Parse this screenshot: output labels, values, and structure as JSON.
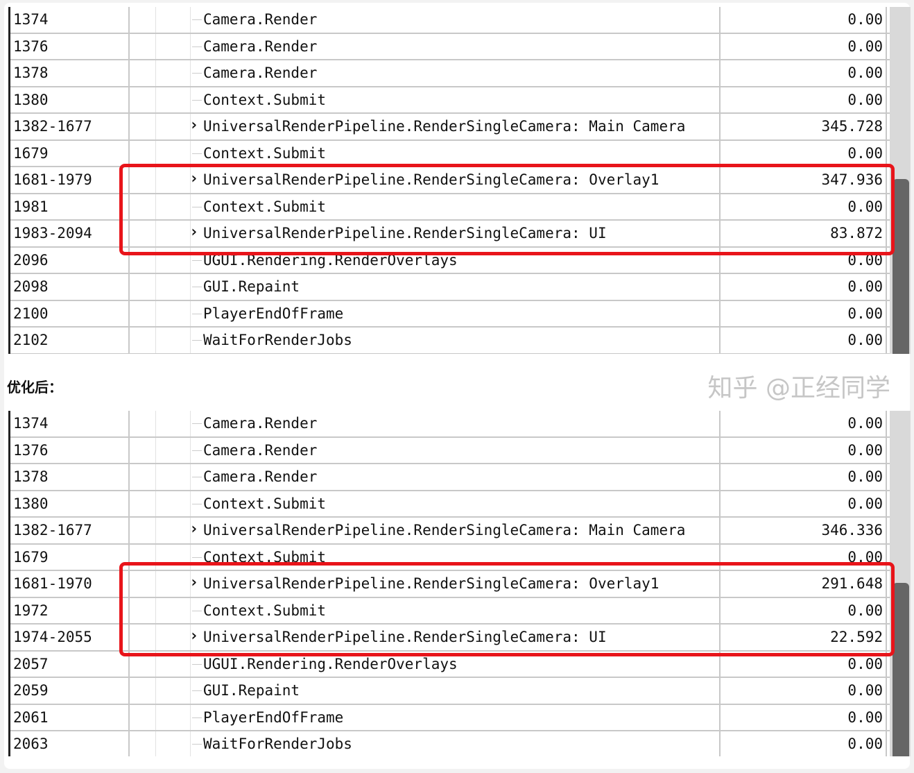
{
  "before": {
    "rows": [
      {
        "id": "1374",
        "name": "Camera.Render",
        "value": "0.00",
        "expand": false
      },
      {
        "id": "1376",
        "name": "Camera.Render",
        "value": "0.00",
        "expand": false
      },
      {
        "id": "1378",
        "name": "Camera.Render",
        "value": "0.00",
        "expand": false
      },
      {
        "id": "1380",
        "name": "Context.Submit",
        "value": "0.00",
        "expand": false
      },
      {
        "id": "1382-1677",
        "name": "UniversalRenderPipeline.RenderSingleCamera: Main Camera",
        "value": "345.728",
        "expand": true
      },
      {
        "id": "1679",
        "name": "Context.Submit",
        "value": "0.00",
        "expand": false
      },
      {
        "id": "1681-1979",
        "name": "UniversalRenderPipeline.RenderSingleCamera: Overlay1",
        "value": "347.936",
        "expand": true
      },
      {
        "id": "1981",
        "name": "Context.Submit",
        "value": "0.00",
        "expand": false
      },
      {
        "id": "1983-2094",
        "name": "UniversalRenderPipeline.RenderSingleCamera: UI",
        "value": "83.872",
        "expand": true
      },
      {
        "id": "2096",
        "name": "UGUI.Rendering.RenderOverlays",
        "value": "0.00",
        "expand": false
      },
      {
        "id": "2098",
        "name": "GUI.Repaint",
        "value": "0.00",
        "expand": false
      },
      {
        "id": "2100",
        "name": "PlayerEndOfFrame",
        "value": "0.00",
        "expand": false
      },
      {
        "id": "2102",
        "name": "WaitForRenderJobs",
        "value": "0.00",
        "expand": false
      }
    ]
  },
  "section_label": "优化后：",
  "after": {
    "rows": [
      {
        "id": "1374",
        "name": "Camera.Render",
        "value": "0.00",
        "expand": false
      },
      {
        "id": "1376",
        "name": "Camera.Render",
        "value": "0.00",
        "expand": false
      },
      {
        "id": "1378",
        "name": "Camera.Render",
        "value": "0.00",
        "expand": false
      },
      {
        "id": "1380",
        "name": "Context.Submit",
        "value": "0.00",
        "expand": false
      },
      {
        "id": "1382-1677",
        "name": "UniversalRenderPipeline.RenderSingleCamera: Main Camera",
        "value": "346.336",
        "expand": true
      },
      {
        "id": "1679",
        "name": "Context.Submit",
        "value": "0.00",
        "expand": false
      },
      {
        "id": "1681-1970",
        "name": "UniversalRenderPipeline.RenderSingleCamera: Overlay1",
        "value": "291.648",
        "expand": true
      },
      {
        "id": "1972",
        "name": "Context.Submit",
        "value": "0.00",
        "expand": false
      },
      {
        "id": "1974-2055",
        "name": "UniversalRenderPipeline.RenderSingleCamera: UI",
        "value": "22.592",
        "expand": true
      },
      {
        "id": "2057",
        "name": "UGUI.Rendering.RenderOverlays",
        "value": "0.00",
        "expand": false
      },
      {
        "id": "2059",
        "name": "GUI.Repaint",
        "value": "0.00",
        "expand": false
      },
      {
        "id": "2061",
        "name": "PlayerEndOfFrame",
        "value": "0.00",
        "expand": false
      },
      {
        "id": "2063",
        "name": "WaitForRenderJobs",
        "value": "0.00",
        "expand": false
      }
    ]
  },
  "watermark": "知乎 @正经同学",
  "colors": {
    "highlight": "#e8141a",
    "scroll_thumb": "#666666"
  }
}
